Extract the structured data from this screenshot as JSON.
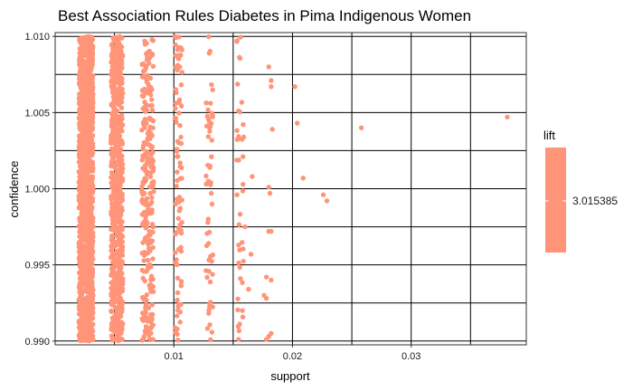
{
  "chart_data": {
    "type": "scatter",
    "title": "Best Association Rules Diabetes in Pima Indigenous Women",
    "xlabel": "support",
    "ylabel": "confidence",
    "xlim": [
      0.0,
      0.0397
    ],
    "ylim": [
      0.98975,
      1.01025
    ],
    "x_ticks": [
      0.01,
      0.02,
      0.03
    ],
    "x_tick_labels": [
      "0.01",
      "0.02",
      "0.03"
    ],
    "y_ticks": [
      0.99,
      0.995,
      1.0,
      1.005,
      1.01
    ],
    "y_tick_labels": [
      "0.990",
      "0.995",
      "1.000",
      "1.005",
      "1.010"
    ],
    "grid": true,
    "point_color": "#FF9478",
    "legend": {
      "title": "lift",
      "placement": "right",
      "value_label": "3.015385",
      "color": "#FF9478"
    },
    "dense_columns": [
      {
        "support": 0.0026,
        "jitter": 0.0006,
        "count": 1400
      },
      {
        "support": 0.0052,
        "jitter": 0.0005,
        "count": 700
      },
      {
        "support": 0.0078,
        "jitter": 0.0005,
        "count": 260
      },
      {
        "support": 0.0104,
        "jitter": 0.0003,
        "count": 90
      },
      {
        "support": 0.013,
        "jitter": 0.0003,
        "count": 60
      },
      {
        "support": 0.0156,
        "jitter": 0.0003,
        "count": 40
      }
    ],
    "points": [
      {
        "x": 0.018,
        "y": 1.008
      },
      {
        "x": 0.0182,
        "y": 1.0067
      },
      {
        "x": 0.0182,
        "y": 1.0071
      },
      {
        "x": 0.0183,
        "y": 1.0039
      },
      {
        "x": 0.018,
        "y": 1.0001
      },
      {
        "x": 0.0181,
        "y": 0.9997
      },
      {
        "x": 0.018,
        "y": 0.9972
      },
      {
        "x": 0.0182,
        "y": 0.9972
      },
      {
        "x": 0.0178,
        "y": 0.9942
      },
      {
        "x": 0.0182,
        "y": 0.994
      },
      {
        "x": 0.0176,
        "y": 0.993
      },
      {
        "x": 0.0178,
        "y": 0.9928
      },
      {
        "x": 0.0182,
        "y": 0.9905
      },
      {
        "x": 0.018,
        "y": 0.9903
      },
      {
        "x": 0.0178,
        "y": 0.9901
      },
      {
        "x": 0.0166,
        "y": 1.0008
      },
      {
        "x": 0.0165,
        "y": 0.9957
      },
      {
        "x": 0.0163,
        "y": 0.9934
      },
      {
        "x": 0.016,
        "y": 0.9975
      },
      {
        "x": 0.0202,
        "y": 1.0067
      },
      {
        "x": 0.0204,
        "y": 1.0043
      },
      {
        "x": 0.0209,
        "y": 1.0007
      },
      {
        "x": 0.0226,
        "y": 0.9996
      },
      {
        "x": 0.0229,
        "y": 0.9992
      },
      {
        "x": 0.0258,
        "y": 1.004
      },
      {
        "x": 0.0381,
        "y": 1.0047
      }
    ]
  }
}
